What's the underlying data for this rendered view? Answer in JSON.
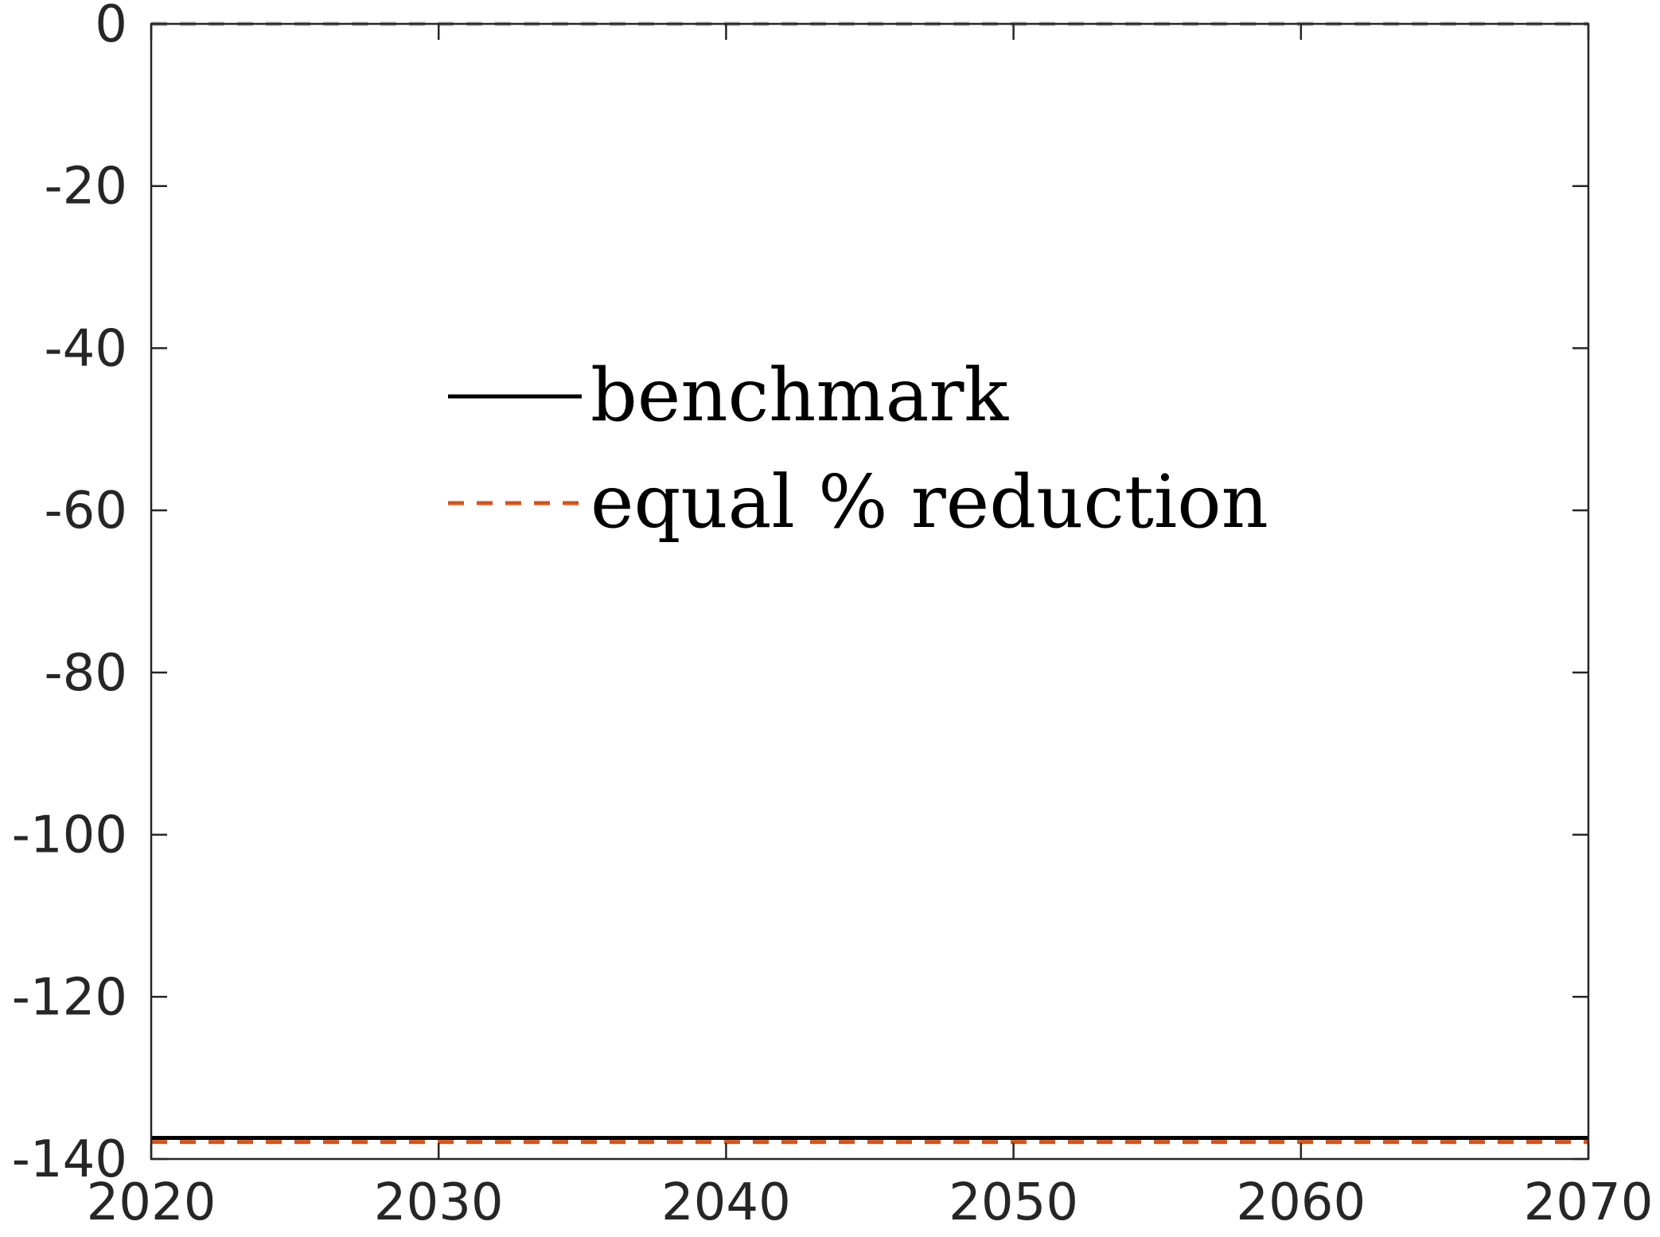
{
  "chart_data": {
    "type": "line",
    "title": "",
    "xlabel": "",
    "ylabel": "",
    "xlim": [
      2020,
      2070
    ],
    "ylim": [
      -140,
      0
    ],
    "xticks": [
      2020,
      2030,
      2040,
      2050,
      2060,
      2070
    ],
    "yticks": [
      0,
      -20,
      -40,
      -60,
      -80,
      -100,
      -120,
      -140
    ],
    "xtick_labels": [
      "2020",
      "2030",
      "2040",
      "2050",
      "2060",
      "2070"
    ],
    "ytick_labels": [
      "0",
      "-20",
      "-40",
      "-60",
      "-80",
      "-100",
      "-120",
      "-140"
    ],
    "grid": false,
    "legend_position": "upper-center",
    "reference_line": {
      "y": 0,
      "style": "dashed",
      "color": "#a6a6a6"
    },
    "series": [
      {
        "name": "benchmark",
        "style": "solid",
        "color": "#000000",
        "x": [
          2020,
          2070
        ],
        "y": [
          -137.4,
          -137.4
        ]
      },
      {
        "name": "equal % reduction",
        "style": "dashed",
        "color": "#d95319",
        "x": [
          2020,
          2070
        ],
        "y": [
          -137.9,
          -137.9
        ]
      }
    ]
  }
}
